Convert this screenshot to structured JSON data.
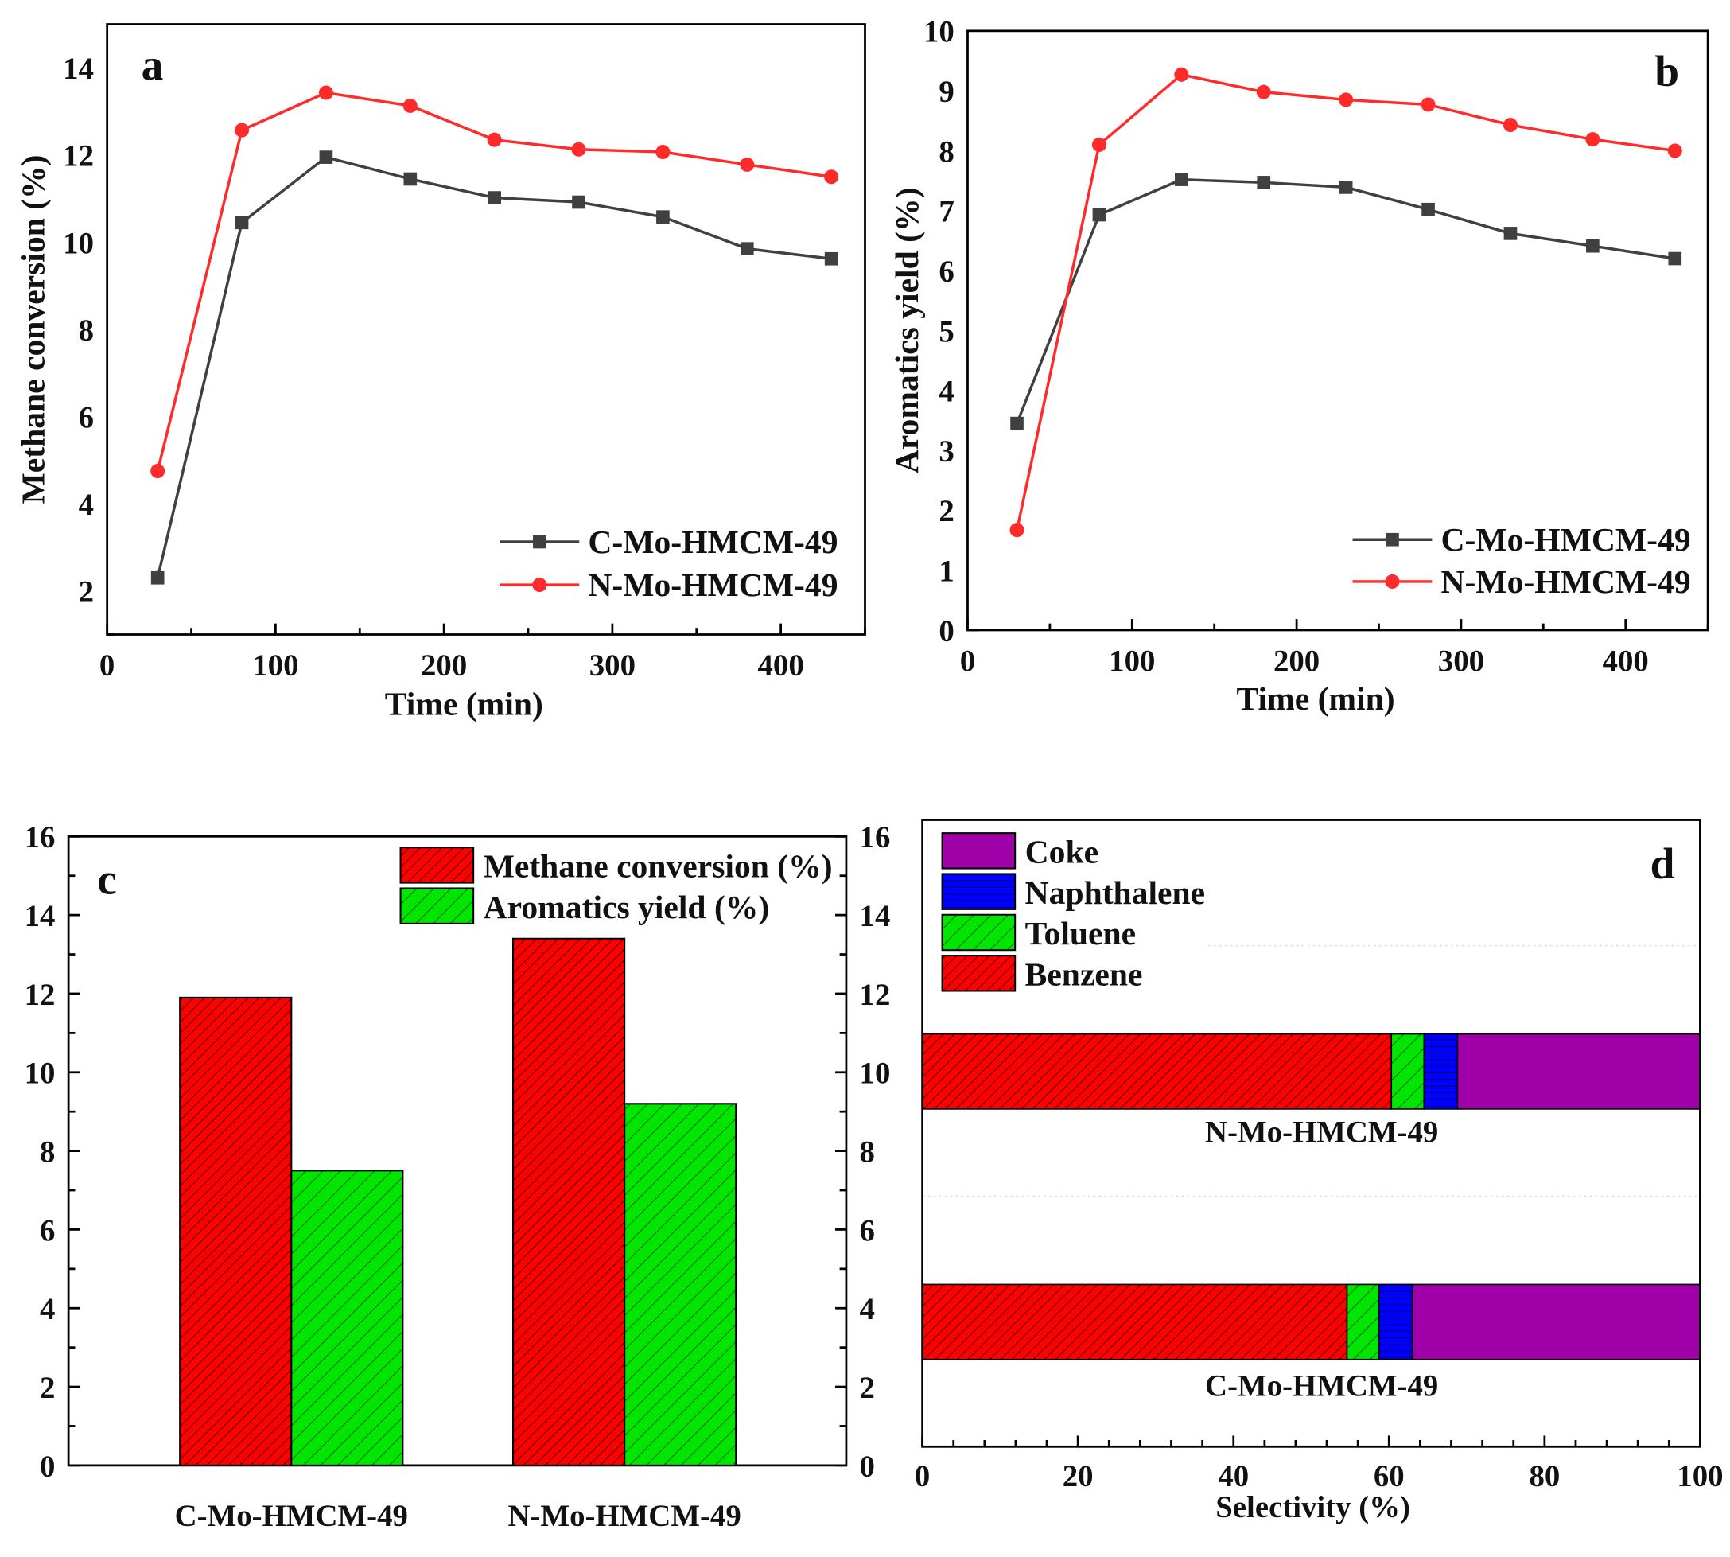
{
  "chart_data": [
    {
      "type": "line",
      "panel_label": "a",
      "xlabel": "Time (min)",
      "ylabel": "Methane conversion (%)",
      "xlim": [
        0,
        450
      ],
      "ylim": [
        1,
        15
      ],
      "xticks": [
        "0",
        "100",
        "200",
        "300",
        "400"
      ],
      "yticks": [
        "2",
        "4",
        "6",
        "8",
        "10",
        "12",
        "14"
      ],
      "x": [
        30,
        80,
        130,
        180,
        230,
        280,
        330,
        380,
        430
      ],
      "legend_position": "bottom-right",
      "series": [
        {
          "name": "C-Mo-HMCM-49",
          "color": "#404040",
          "marker": "square",
          "values": [
            2.3,
            10.45,
            11.95,
            11.45,
            11.02,
            10.92,
            10.58,
            9.85,
            9.62
          ]
        },
        {
          "name": "N-Mo-HMCM-49",
          "color": "#ff2a2a",
          "marker": "circle",
          "values": [
            4.75,
            12.57,
            13.43,
            13.13,
            12.35,
            12.13,
            12.07,
            11.78,
            11.5
          ]
        }
      ]
    },
    {
      "type": "line",
      "panel_label": "b",
      "xlabel": "Time (min)",
      "ylabel": "Aromatics yield (%)",
      "xlim": [
        0,
        450
      ],
      "ylim": [
        0,
        10
      ],
      "xticks": [
        "0",
        "100",
        "200",
        "300",
        "400"
      ],
      "yticks": [
        "0",
        "1",
        "2",
        "3",
        "4",
        "5",
        "6",
        "7",
        "8",
        "9",
        "10"
      ],
      "x": [
        30,
        80,
        130,
        180,
        230,
        280,
        330,
        380,
        430
      ],
      "legend_position": "bottom-right",
      "series": [
        {
          "name": "C-Mo-HMCM-49",
          "color": "#404040",
          "marker": "square",
          "values": [
            3.45,
            6.93,
            7.52,
            7.47,
            7.39,
            7.02,
            6.62,
            6.41,
            6.2
          ]
        },
        {
          "name": "N-Mo-HMCM-49",
          "color": "#ff2a2a",
          "marker": "circle",
          "values": [
            1.67,
            8.1,
            9.27,
            8.98,
            8.85,
            8.77,
            8.43,
            8.19,
            8.0
          ]
        }
      ]
    },
    {
      "type": "bar",
      "panel_label": "c",
      "categories": [
        "C-Mo-HMCM-49",
        "N-Mo-HMCM-49"
      ],
      "ylim": [
        0,
        16
      ],
      "yticks": [
        "0",
        "2",
        "4",
        "6",
        "8",
        "10",
        "12",
        "14",
        "16"
      ],
      "legend_position": "top-right",
      "series": [
        {
          "name": "Methane conversion (%)",
          "color": "#ff0000",
          "pattern": "hatch-red",
          "values": [
            11.9,
            13.4
          ]
        },
        {
          "name": "Aromatics yield (%)",
          "color": "#00ee00",
          "pattern": "hatch-green",
          "values": [
            7.5,
            9.2
          ]
        }
      ]
    },
    {
      "type": "bar",
      "orientation": "horizontal-stacked",
      "panel_label": "d",
      "xlabel": "Selectivity (%)",
      "xlim": [
        0,
        100
      ],
      "xticks": [
        "0",
        "20",
        "40",
        "60",
        "80",
        "100"
      ],
      "categories": [
        "N-Mo-HMCM-49",
        "C-Mo-HMCM-49"
      ],
      "legend_position": "top-left",
      "series": [
        {
          "name": "Benzene",
          "color": "#ff0000",
          "pattern": "hatch-red",
          "values": [
            60.3,
            54.6
          ]
        },
        {
          "name": "Toluene",
          "color": "#22ee22",
          "pattern": "hatch-green",
          "values": [
            4.2,
            4.1
          ]
        },
        {
          "name": "Naphthalene",
          "color": "#0000ff",
          "pattern": "hlines-blue",
          "values": [
            4.3,
            4.3
          ]
        },
        {
          "name": "Coke",
          "color": "#a000a8",
          "pattern": "solid",
          "values": [
            31.2,
            37.0
          ]
        }
      ],
      "legend_order": [
        "Coke",
        "Naphthalene",
        "Toluene",
        "Benzene"
      ]
    }
  ]
}
